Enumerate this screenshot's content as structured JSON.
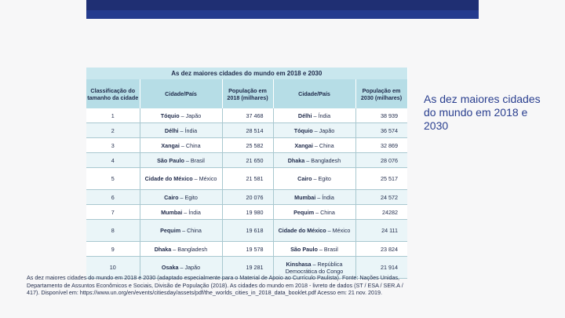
{
  "slide": {
    "title": "As dez maiores cidades do mundo em 2018 e 2030",
    "colors": {
      "topbar": "#1f2f73",
      "title": "#2a3f8f",
      "table_header": "#b6dde6",
      "row_alt": "#eaf5f8"
    }
  },
  "table": {
    "title": "As dez maiores cidades do mundo em 2018 e 2030",
    "headers": [
      "Classificação do tamanho da cidade",
      "Cidade/País",
      "População em 2018 (milhares)",
      "Cidade/País",
      "População em 2030 (milhares)"
    ],
    "rows": [
      {
        "rank": "1",
        "city2018": "Tóquio",
        "country2018": " – Japão",
        "pop2018": "37 468",
        "city2030": "Délhi",
        "country2030": " – Índia",
        "pop2030": "38 939"
      },
      {
        "rank": "2",
        "city2018": "Délhi",
        "country2018": " – Índia",
        "pop2018": "28 514",
        "city2030": "Tóquio",
        "country2030": " – Japão",
        "pop2030": "36 574"
      },
      {
        "rank": "3",
        "city2018": "Xangai",
        "country2018": " – China",
        "pop2018": "25 582",
        "city2030": "Xangai",
        "country2030": " – China",
        "pop2030": "32 869"
      },
      {
        "rank": "4",
        "city2018": "São Paulo",
        "country2018": " – Brasil",
        "pop2018": "21 650",
        "city2030": "Dhaka",
        "country2030": " – Bangladesh",
        "pop2030": "28 076"
      },
      {
        "rank": "5",
        "city2018": "Cidade do México",
        "country2018": " – México",
        "pop2018": "21 581",
        "city2030": "Cairo",
        "country2030": " – Egito",
        "pop2030": "25 517"
      },
      {
        "rank": "6",
        "city2018": "Cairo",
        "country2018": " – Egito",
        "pop2018": "20 076",
        "city2030": "Mumbai",
        "country2030": " – Índia",
        "pop2030": "24 572"
      },
      {
        "rank": "7",
        "city2018": "Mumbai",
        "country2018": " – Índia",
        "pop2018": "19 980",
        "city2030": "Pequim",
        "country2030": " – China",
        "pop2030": "24282"
      },
      {
        "rank": "8",
        "city2018": "Pequim",
        "country2018": " – China",
        "pop2018": "19 618",
        "city2030": "Cidade do México",
        "country2030": " – México",
        "pop2030": "24 111"
      },
      {
        "rank": "9",
        "city2018": "Dhaka",
        "country2018": " – Bangladesh",
        "pop2018": "19 578",
        "city2030": "São Paulo",
        "country2030": " – Brasil",
        "pop2030": "23 824"
      },
      {
        "rank": "10",
        "city2018": "Osaka",
        "country2018": " – Japão",
        "pop2018": "19 281",
        "city2030": "Kinshasa",
        "country2030": " – República Democrática do Congo",
        "pop2030": "21 914"
      }
    ]
  },
  "source_text": "As dez maiores cidades do mundo em 2018 e 2030 (adaptado especialmente para o Material de Apoio ao Currículo Paulista). Fonte: Nações Unidas, Departamento de Assuntos Econômicos e Sociais, Divisão de População (2018). As cidades do mundo em 2018 - livreto de dados (ST / ESA / SER.A / 417). Disponível em: https://www.un.org/en/events/citiesday/assets/pdf/the_worlds_cities_in_2018_data_booklet.pdf Acesso em: 21 nov. 2019."
}
